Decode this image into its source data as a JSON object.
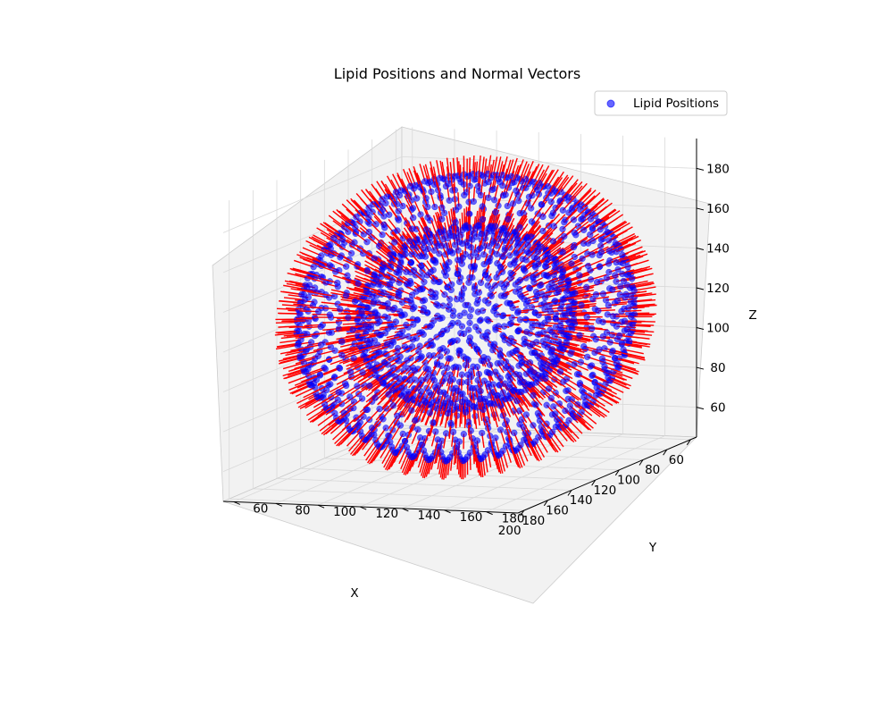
{
  "chart_data": {
    "type": "scatter",
    "projection": "3d",
    "title": "Lipid Positions and Normal Vectors",
    "xlabel": "X",
    "ylabel": "Y",
    "zlabel": "Z",
    "xlim": [
      55,
      205
    ],
    "ylim": [
      55,
      195
    ],
    "zlim": [
      45,
      195
    ],
    "xticks": [
      60,
      80,
      100,
      120,
      140,
      160,
      180,
      200
    ],
    "yticks": [
      60,
      80,
      100,
      120,
      140,
      160,
      180
    ],
    "zticks": [
      60,
      80,
      100,
      120,
      140,
      160,
      180
    ],
    "legend": {
      "position": "upper right",
      "entries": [
        "Lipid Positions"
      ]
    },
    "grid": true,
    "series": [
      {
        "name": "Lipid Positions",
        "kind": "points",
        "color": "#0000ff",
        "alpha": 0.6,
        "shape": "sphere",
        "center": [
          125,
          125,
          120
        ],
        "outer_radius": 70,
        "inner_radius": 45,
        "approx_count": 2000
      },
      {
        "kind": "normal_vectors",
        "color": "#ff0000",
        "direction": "radial"
      }
    ]
  }
}
